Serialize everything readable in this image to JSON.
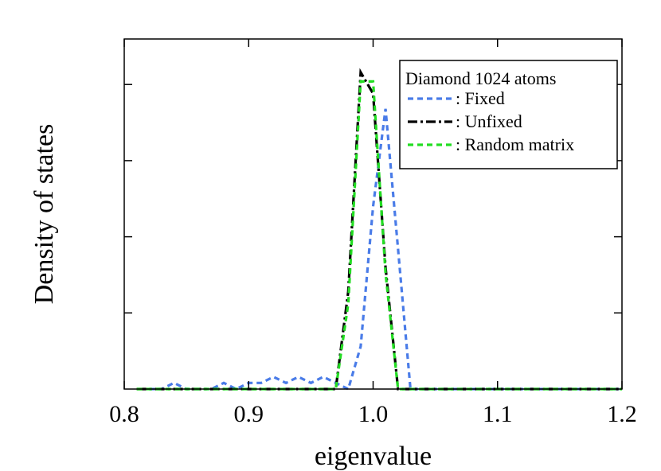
{
  "chart_data": {
    "type": "line",
    "xlabel": "eigenvalue",
    "ylabel": "Density of states",
    "xlim": [
      0.8,
      1.2
    ],
    "ylim": [
      0,
      1.0
    ],
    "x_ticks": [
      "0.8",
      "0.9",
      "1.0",
      "1.1",
      "1.2"
    ],
    "y_ticks": [
      0.25,
      0.5,
      0.75,
      1.0
    ],
    "y_tick_labels_shown": false,
    "grid": false,
    "legend": {
      "title": "Diamond 1024 atoms",
      "placement": "top-right"
    },
    "series": [
      {
        "name": ": Fixed",
        "color": "#4a7ce8",
        "dash": "dashed",
        "points": [
          [
            0.82,
            0.0
          ],
          [
            0.83,
            0.0
          ],
          [
            0.84,
            0.02
          ],
          [
            0.85,
            0.0
          ],
          [
            0.86,
            0.0
          ],
          [
            0.87,
            0.0
          ],
          [
            0.88,
            0.02
          ],
          [
            0.89,
            0.0
          ],
          [
            0.9,
            0.02
          ],
          [
            0.91,
            0.02
          ],
          [
            0.92,
            0.04
          ],
          [
            0.93,
            0.02
          ],
          [
            0.94,
            0.04
          ],
          [
            0.95,
            0.02
          ],
          [
            0.96,
            0.04
          ],
          [
            0.97,
            0.02
          ],
          [
            0.98,
            0.0
          ],
          [
            0.99,
            0.14
          ],
          [
            1.0,
            0.6
          ],
          [
            1.01,
            0.92
          ],
          [
            1.02,
            0.46
          ],
          [
            1.03,
            0.0
          ],
          [
            1.04,
            0.0
          ],
          [
            1.06,
            0.0
          ],
          [
            1.08,
            0.0
          ],
          [
            1.1,
            0.0
          ],
          [
            1.12,
            0.0
          ],
          [
            1.14,
            0.0
          ],
          [
            1.16,
            0.0
          ],
          [
            1.18,
            0.0
          ],
          [
            1.2,
            0.0
          ]
        ]
      },
      {
        "name": ":  Unfixed",
        "color": "#000000",
        "dash": "dash-dot",
        "points": [
          [
            0.81,
            0.0
          ],
          [
            0.84,
            0.0
          ],
          [
            0.87,
            0.0
          ],
          [
            0.9,
            0.0
          ],
          [
            0.93,
            0.0
          ],
          [
            0.95,
            0.0
          ],
          [
            0.97,
            0.0
          ],
          [
            0.98,
            0.32
          ],
          [
            0.99,
            1.04
          ],
          [
            1.0,
            0.97
          ],
          [
            1.01,
            0.4
          ],
          [
            1.02,
            0.0
          ],
          [
            1.04,
            0.0
          ],
          [
            1.06,
            0.0
          ],
          [
            1.08,
            0.0
          ],
          [
            1.1,
            0.0
          ],
          [
            1.12,
            0.0
          ],
          [
            1.14,
            0.0
          ],
          [
            1.16,
            0.0
          ],
          [
            1.18,
            0.0
          ],
          [
            1.2,
            0.0
          ]
        ]
      },
      {
        "name": ": Random matrix",
        "color": "#22dd22",
        "dash": "dashed",
        "points": [
          [
            0.81,
            0.0
          ],
          [
            0.84,
            0.0
          ],
          [
            0.87,
            0.0
          ],
          [
            0.9,
            0.0
          ],
          [
            0.93,
            0.0
          ],
          [
            0.95,
            0.0
          ],
          [
            0.97,
            0.0
          ],
          [
            0.98,
            0.28
          ],
          [
            0.99,
            1.01
          ],
          [
            1.0,
            1.01
          ],
          [
            1.01,
            0.38
          ],
          [
            1.02,
            0.0
          ],
          [
            1.04,
            0.0
          ],
          [
            1.06,
            0.0
          ],
          [
            1.08,
            0.0
          ],
          [
            1.1,
            0.0
          ],
          [
            1.12,
            0.0
          ],
          [
            1.14,
            0.0
          ],
          [
            1.16,
            0.0
          ],
          [
            1.18,
            0.0
          ],
          [
            1.2,
            0.0
          ]
        ]
      }
    ]
  }
}
